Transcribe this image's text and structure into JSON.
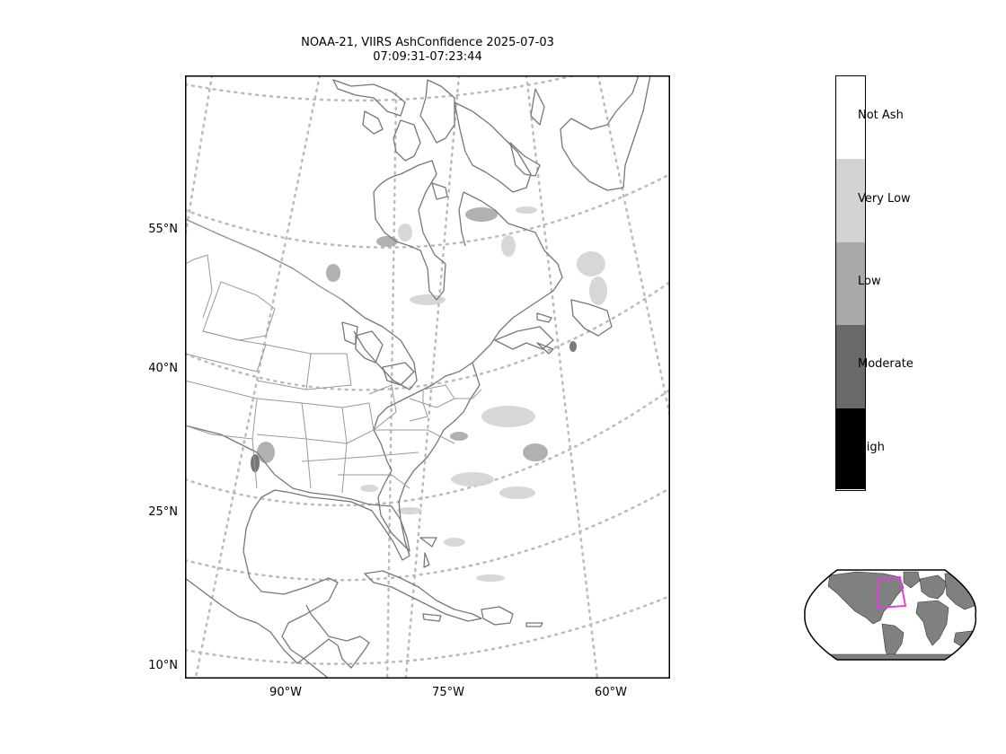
{
  "title": {
    "line1": "NOAA-21, VIIRS AshConfidence 2025-07-03",
    "line2": "07:09:31-07:23:44"
  },
  "map": {
    "lat_labels": [
      "55°N",
      "40°N",
      "25°N",
      "10°N"
    ],
    "lon_labels": [
      "90°W",
      "75°W",
      "60°W"
    ],
    "colors": {
      "land_outline": "#777777",
      "graticule": "#bbbbbb",
      "inset_land": "#808080",
      "inset_box": "#e040e0"
    }
  },
  "colorbar": {
    "categories": [
      {
        "label": "Not Ash",
        "color": "#ffffff"
      },
      {
        "label": "Very Low",
        "color": "#d3d3d3"
      },
      {
        "label": "Low",
        "color": "#a9a9a9"
      },
      {
        "label": "Moderate",
        "color": "#696969"
      },
      {
        "label": "High",
        "color": "#000000"
      }
    ]
  }
}
